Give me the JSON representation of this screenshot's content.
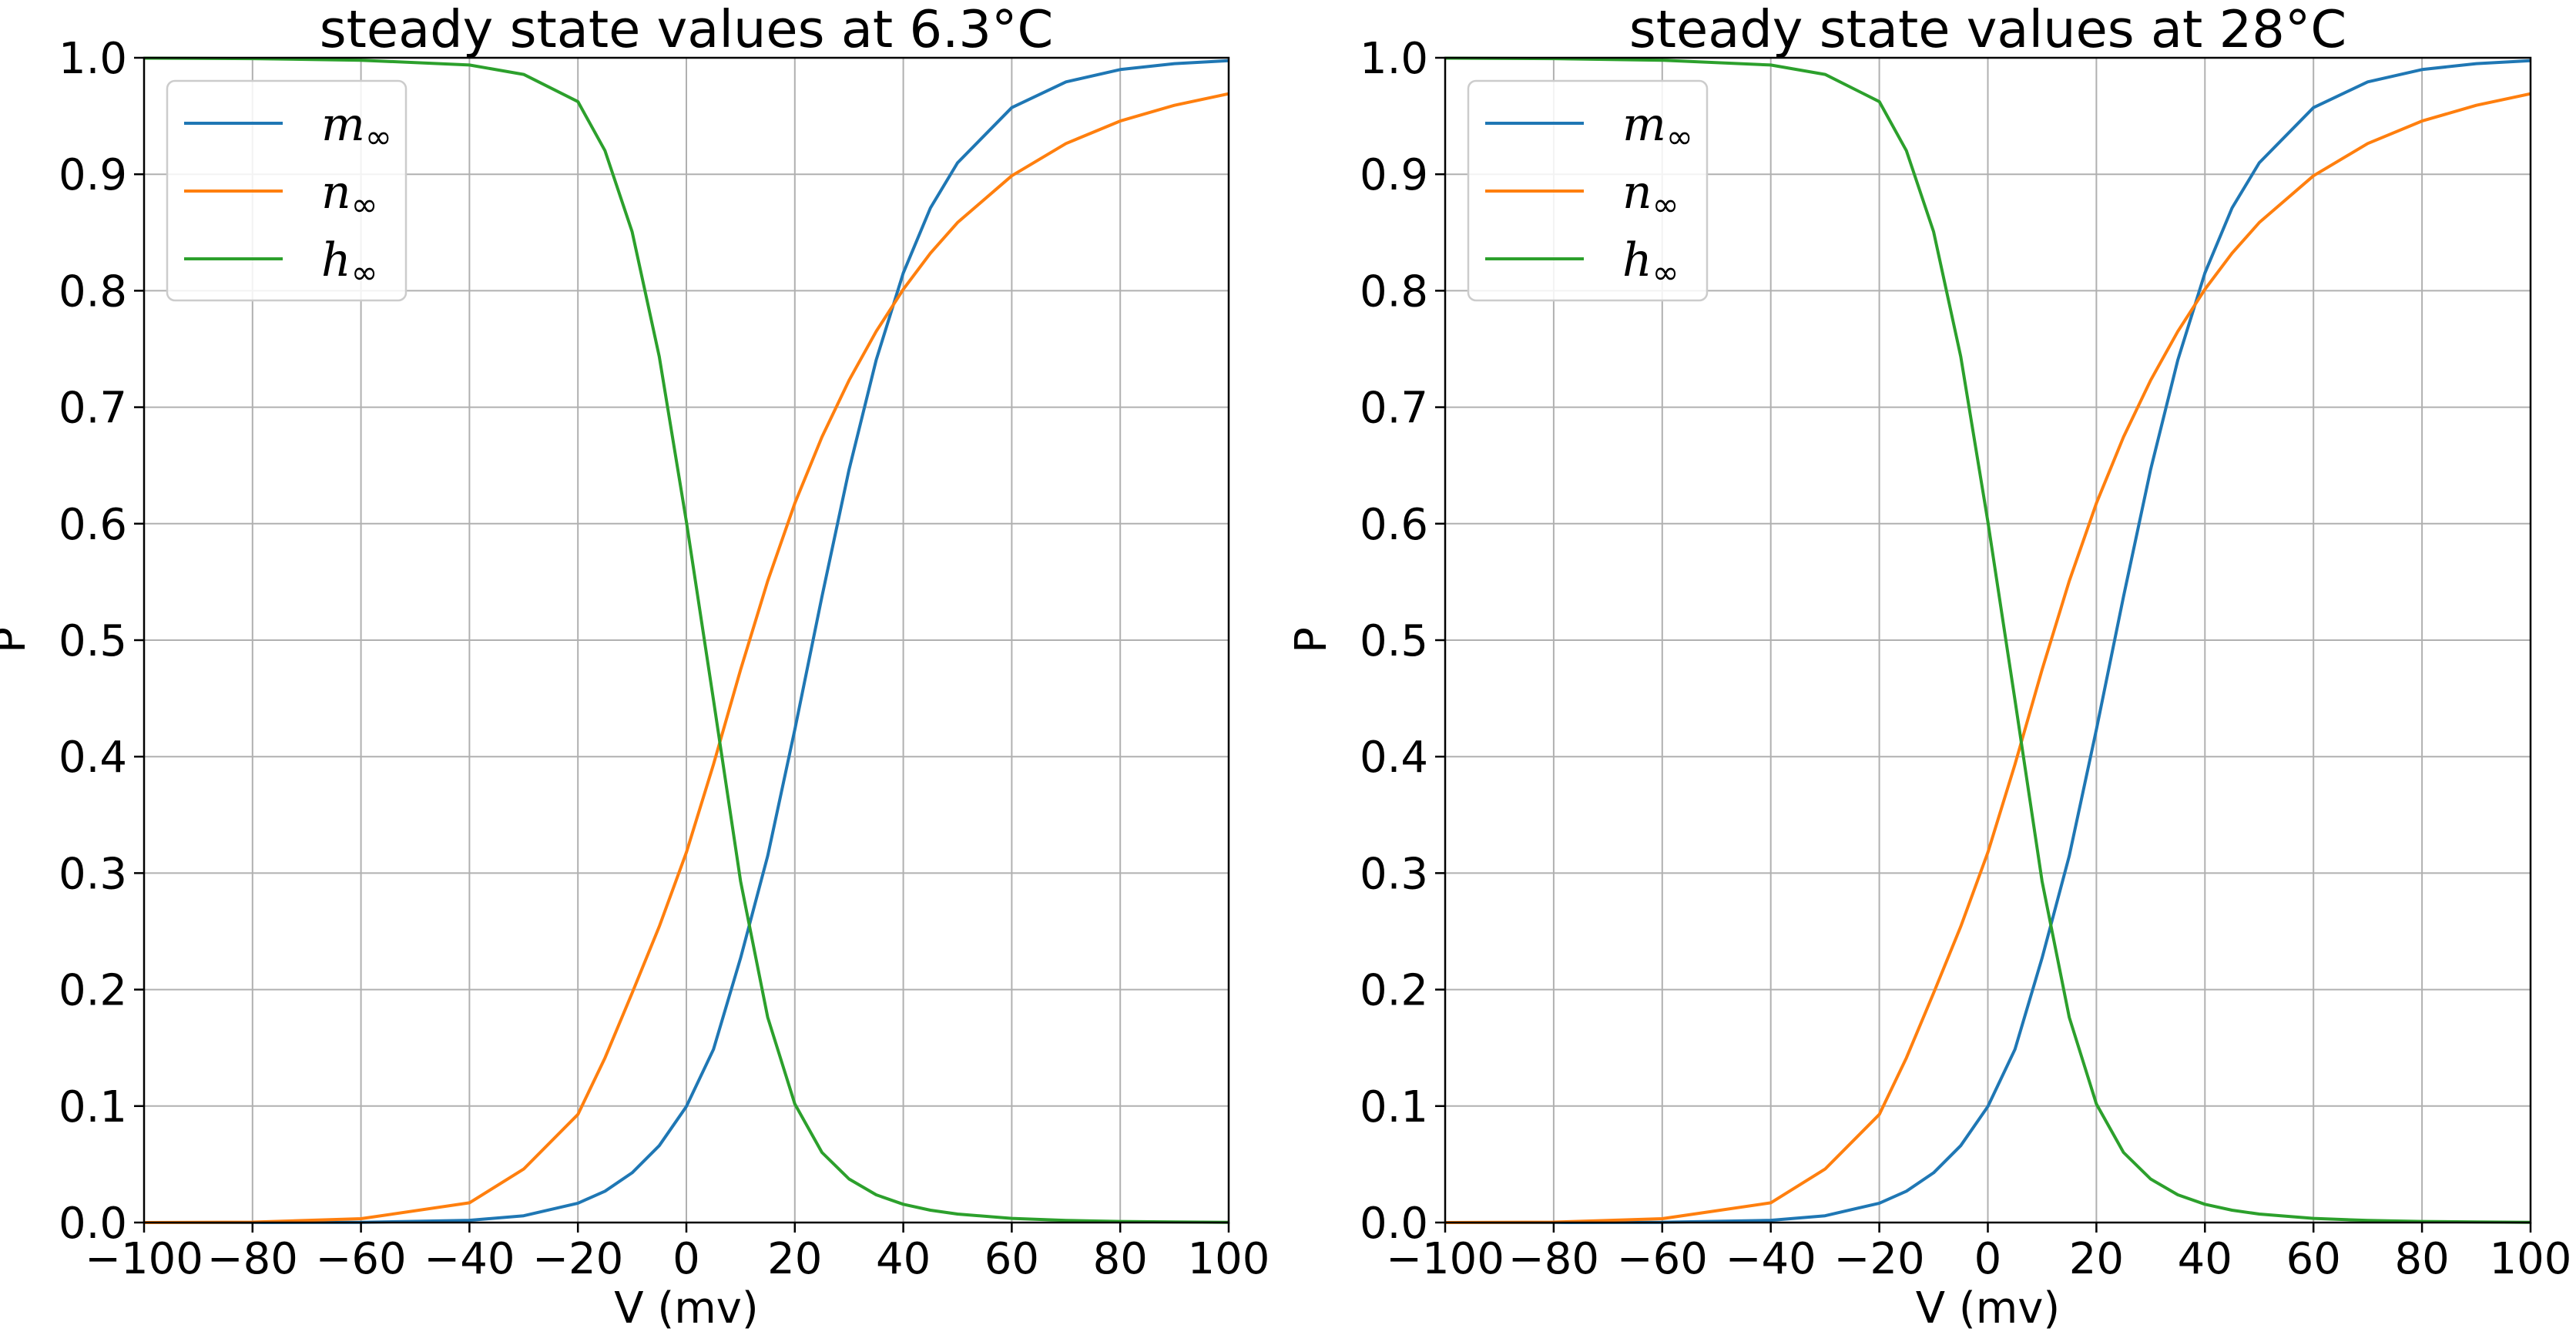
{
  "chart_data": [
    {
      "type": "line",
      "title": "steady state values at 6.3°C",
      "xlabel": "V (mv)",
      "ylabel": "P",
      "xlim": [
        -100,
        100
      ],
      "ylim": [
        0.0,
        1.0
      ],
      "xticks": [
        "−100",
        "−80",
        "−60",
        "−40",
        "−20",
        "0",
        "20",
        "40",
        "60",
        "80",
        "100"
      ],
      "yticks": [
        "0.0",
        "0.1",
        "0.2",
        "0.3",
        "0.4",
        "0.5",
        "0.6",
        "0.7",
        "0.8",
        "0.9",
        "1.0"
      ],
      "grid": true,
      "legend_position": "top-left",
      "x": [
        -100,
        -80,
        -60,
        -40,
        -30,
        -20,
        -15,
        -10,
        -5,
        0,
        5,
        10,
        15,
        20,
        25,
        30,
        35,
        40,
        45,
        50,
        60,
        70,
        80,
        90,
        100
      ],
      "series": [
        {
          "name": "m",
          "subscript": "∞",
          "color": "#1f77b4",
          "values": [
            0.0,
            0.0,
            0.0002,
            0.0019,
            0.0058,
            0.0166,
            0.0269,
            0.0427,
            0.066,
            0.0996,
            0.1487,
            0.2271,
            0.3148,
            0.4233,
            0.5374,
            0.6464,
            0.7405,
            0.8153,
            0.871,
            0.9098,
            0.9572,
            0.9793,
            0.9899,
            0.995,
            0.9975
          ]
        },
        {
          "name": "n",
          "subscript": "∞",
          "color": "#ff7f0e",
          "values": [
            0.0,
            0.0003,
            0.0033,
            0.0169,
            0.0459,
            0.0928,
            0.1414,
            0.1971,
            0.2541,
            0.3177,
            0.3933,
            0.4747,
            0.5508,
            0.6175,
            0.6745,
            0.7231,
            0.7651,
            0.8012,
            0.8322,
            0.8585,
            0.8987,
            0.9264,
            0.9457,
            0.9592,
            0.9691
          ]
        },
        {
          "name": "h",
          "subscript": "∞",
          "color": "#2ca02c",
          "values": [
            0.9997,
            0.9993,
            0.9979,
            0.9938,
            0.9857,
            0.9624,
            0.9202,
            0.8506,
            0.7435,
            0.6018,
            0.4486,
            0.2929,
            0.1761,
            0.1018,
            0.0602,
            0.0374,
            0.0238,
            0.0157,
            0.0106,
            0.0073,
            0.0036,
            0.0018,
            0.0009,
            0.0005,
            0.0002
          ]
        }
      ]
    },
    {
      "type": "line",
      "title": "steady state values at 28°C",
      "xlabel": "V (mv)",
      "ylabel": "P",
      "xlim": [
        -100,
        100
      ],
      "ylim": [
        0.0,
        1.0
      ],
      "xticks": [
        "−100",
        "−80",
        "−60",
        "−40",
        "−20",
        "0",
        "20",
        "40",
        "60",
        "80",
        "100"
      ],
      "yticks": [
        "0.0",
        "0.1",
        "0.2",
        "0.3",
        "0.4",
        "0.5",
        "0.6",
        "0.7",
        "0.8",
        "0.9",
        "1.0"
      ],
      "grid": true,
      "legend_position": "top-left",
      "x": [
        -100,
        -80,
        -60,
        -40,
        -30,
        -20,
        -15,
        -10,
        -5,
        0,
        5,
        10,
        15,
        20,
        25,
        30,
        35,
        40,
        45,
        50,
        60,
        70,
        80,
        90,
        100
      ],
      "series": [
        {
          "name": "m",
          "subscript": "∞",
          "color": "#1f77b4",
          "values": [
            0.0,
            0.0,
            0.0002,
            0.0019,
            0.0058,
            0.0166,
            0.0269,
            0.0427,
            0.066,
            0.0996,
            0.1487,
            0.2271,
            0.3148,
            0.4233,
            0.5374,
            0.6464,
            0.7405,
            0.8153,
            0.871,
            0.9098,
            0.9572,
            0.9793,
            0.9899,
            0.995,
            0.9975
          ]
        },
        {
          "name": "n",
          "subscript": "∞",
          "color": "#ff7f0e",
          "values": [
            0.0,
            0.0003,
            0.0033,
            0.0169,
            0.0459,
            0.0928,
            0.1414,
            0.1971,
            0.2541,
            0.3177,
            0.3933,
            0.4747,
            0.5508,
            0.6175,
            0.6745,
            0.7231,
            0.7651,
            0.8012,
            0.8322,
            0.8585,
            0.8987,
            0.9264,
            0.9457,
            0.9592,
            0.9691
          ]
        },
        {
          "name": "h",
          "subscript": "∞",
          "color": "#2ca02c",
          "values": [
            0.9997,
            0.9993,
            0.9979,
            0.9938,
            0.9857,
            0.9624,
            0.9202,
            0.8506,
            0.7435,
            0.6018,
            0.4486,
            0.2929,
            0.1761,
            0.1018,
            0.0602,
            0.0374,
            0.0238,
            0.0157,
            0.0106,
            0.0073,
            0.0036,
            0.0018,
            0.0009,
            0.0005,
            0.0002
          ]
        }
      ]
    }
  ]
}
